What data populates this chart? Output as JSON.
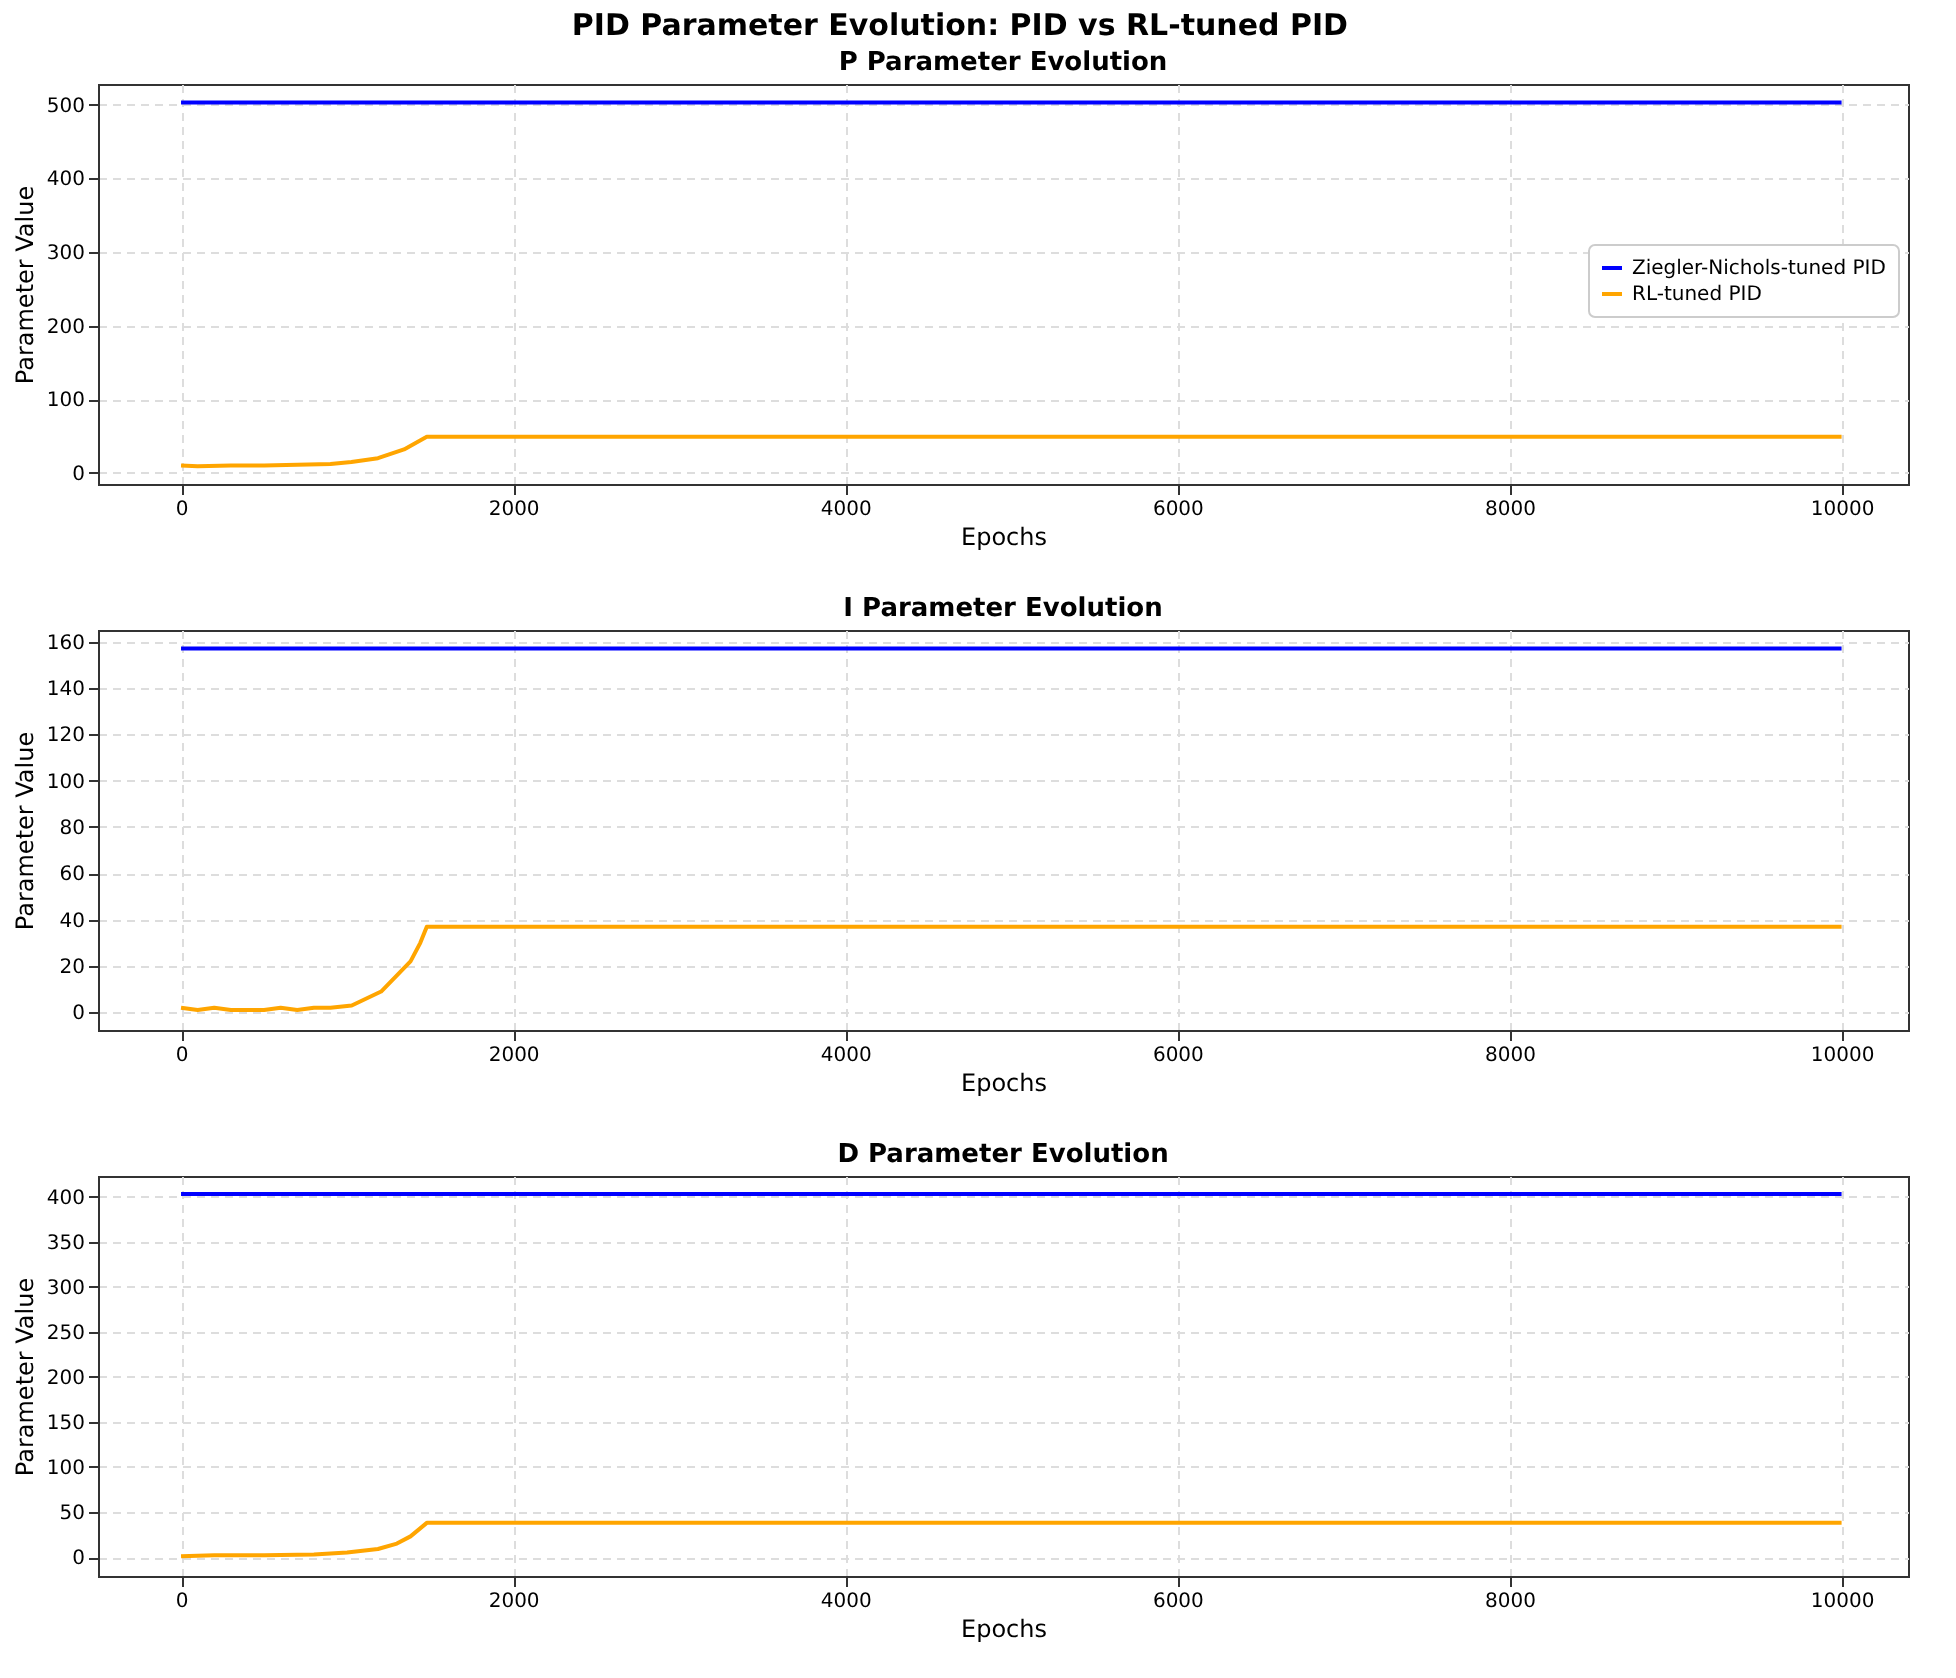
{
  "chart_data": [
    {
      "type": "line",
      "title": "P Parameter Evolution",
      "annotations": [
        "PID Parameter Evolution: PID vs RL-tuned PID"
      ],
      "xlabel": "Epochs",
      "ylabel": "Parameter Value",
      "xlim": [
        -500,
        10400
      ],
      "xticks": [
        0,
        2000,
        4000,
        6000,
        8000,
        10000
      ],
      "ylim": [
        -15,
        528
      ],
      "yticks": [
        0,
        100,
        200,
        300,
        400,
        500
      ],
      "grid": true,
      "legend": "right",
      "line_style": "solid",
      "marker": "none",
      "series": [
        {
          "name": "Ziegler-Nichols-tuned PID",
          "color": "#0000ff",
          "x": [
            0,
            10000
          ],
          "values": [
            503,
            503
          ]
        },
        {
          "name": "RL-tuned PID",
          "color": "#ffa500",
          "x": [
            0,
            100,
            300,
            500,
            700,
            900,
            1026,
            1186,
            1343,
            1480,
            10000
          ],
          "values": [
            10,
            9,
            10,
            10,
            11,
            12,
            15,
            20,
            32,
            49,
            49
          ]
        }
      ]
    },
    {
      "type": "line",
      "title": "I Parameter Evolution",
      "xlabel": "Epochs",
      "ylabel": "Parameter Value",
      "xlim": [
        -500,
        10400
      ],
      "xticks": [
        0,
        2000,
        4000,
        6000,
        8000,
        10000
      ],
      "ylim": [
        -7.6,
        165
      ],
      "yticks": [
        0,
        20,
        40,
        60,
        80,
        100,
        120,
        140,
        160
      ],
      "grid": true,
      "legend": "bottom right",
      "line_style": "solid",
      "marker": "none",
      "series": [
        {
          "name": "Ziegler-Nichols-tuned PID",
          "color": "#0000ff",
          "x": [
            0,
            10000
          ],
          "values": [
            157,
            157
          ]
        },
        {
          "name": "RL-tuned PID",
          "color": "#ffa500",
          "x": [
            0,
            100,
            200,
            300,
            400,
            500,
            600,
            700,
            800,
            900,
            1028,
            1205,
            1382,
            1441,
            1480,
            10000
          ],
          "values": [
            2,
            1,
            2,
            1,
            1,
            1,
            2,
            1,
            2,
            2,
            3,
            9,
            22,
            30,
            37,
            37
          ]
        }
      ]
    },
    {
      "type": "line",
      "title": "D Parameter Evolution",
      "xlabel": "Epochs",
      "ylabel": "Parameter Value",
      "xlim": [
        -500,
        10400
      ],
      "xticks": [
        0,
        2000,
        4000,
        6000,
        8000,
        10000
      ],
      "ylim": [
        -21,
        423
      ],
      "yticks": [
        0,
        50,
        100,
        150,
        200,
        250,
        300,
        350,
        400
      ],
      "grid": true,
      "legend": "right",
      "line_style": "solid",
      "marker": "none",
      "series": [
        {
          "name": "Ziegler-Nichols-tuned PID",
          "color": "#0000ff",
          "x": [
            0,
            10000
          ],
          "values": [
            403,
            403
          ]
        },
        {
          "name": "RL-tuned PID",
          "color": "#ffa500",
          "x": [
            0,
            200,
            500,
            800,
            1000,
            1186,
            1300,
            1382,
            1480,
            10000
          ],
          "values": [
            1,
            2,
            2,
            3,
            5,
            9,
            15,
            23,
            38,
            38
          ]
        }
      ]
    }
  ]
}
